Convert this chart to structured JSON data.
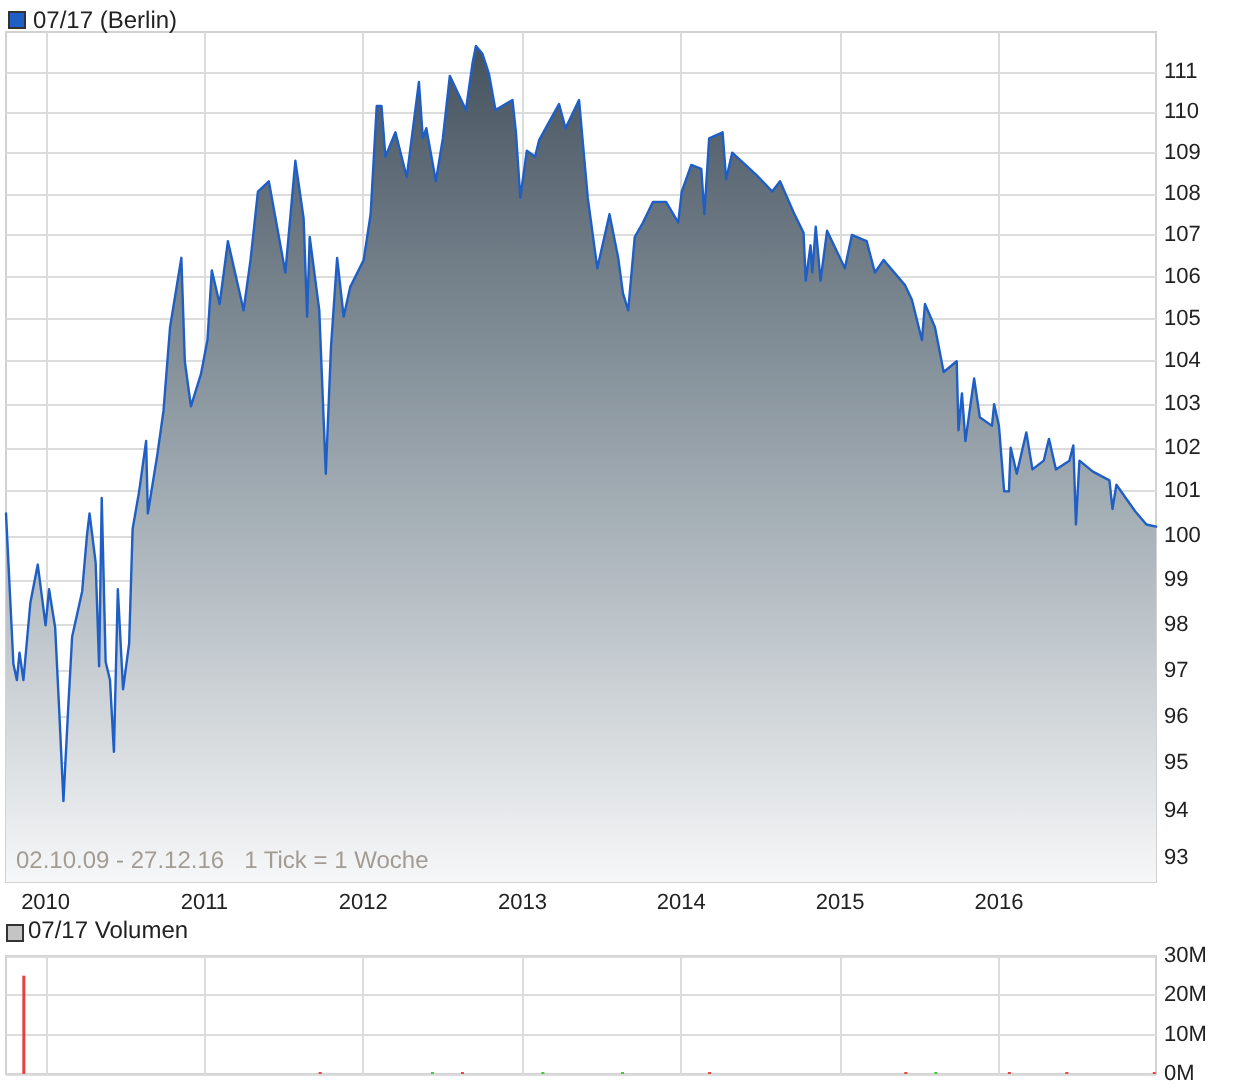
{
  "chart_data": [
    {
      "type": "area",
      "legend": "top left",
      "log": true,
      "grid": true,
      "xlim": [
        "2009-10-02",
        "2016-12-27"
      ],
      "xticks": [
        "2010",
        "2011",
        "2012",
        "2013",
        "2014",
        "2015",
        "2016"
      ],
      "ylim": [
        92.5,
        112
      ],
      "yticks": [
        93,
        94,
        95,
        96,
        97,
        98,
        99,
        100,
        101,
        102,
        103,
        104,
        105,
        106,
        107,
        108,
        109,
        110,
        111
      ],
      "annotations": [
        "02.10.09 - 27.12.16   1 Tick = 1 Woche"
      ],
      "series": [
        {
          "name": "07/17 (Berlin)",
          "color": "#1f5fc5",
          "x": [
            "2009-10-02",
            "2009-10-19",
            "2009-10-27",
            "2009-11-02",
            "2009-11-11",
            "2009-11-27",
            "2009-12-14",
            "2010-01-01",
            "2010-01-09",
            "2010-01-23",
            "2010-02-01",
            "2010-02-11",
            "2010-02-22",
            "2010-03-03",
            "2010-03-26",
            "2010-04-06",
            "2010-04-12",
            "2010-04-26",
            "2010-05-04",
            "2010-05-10",
            "2010-05-19",
            "2010-05-29",
            "2010-06-07",
            "2010-06-16",
            "2010-06-28",
            "2010-07-12",
            "2010-07-20",
            "2010-08-04",
            "2010-08-20",
            "2010-08-24",
            "2010-09-15",
            "2010-09-29",
            "2010-10-14",
            "2010-11-09",
            "2010-11-17",
            "2010-12-01",
            "2010-12-24",
            "2011-01-08",
            "2011-01-18",
            "2011-02-05",
            "2011-02-24",
            "2011-04-01",
            "2011-04-17",
            "2011-05-04",
            "2011-05-29",
            "2011-07-06",
            "2011-07-29",
            "2011-08-17",
            "2011-08-25",
            "2011-08-31",
            "2011-09-22",
            "2011-10-07",
            "2011-10-19",
            "2011-11-02",
            "2011-11-17",
            "2011-12-02",
            "2012-01-02",
            "2012-01-18",
            "2012-02-01",
            "2012-02-12",
            "2012-02-21",
            "2012-03-15",
            "2012-04-10",
            "2012-05-08",
            "2012-05-17",
            "2012-05-25",
            "2012-06-16",
            "2012-07-02",
            "2012-07-18",
            "2012-08-24",
            "2012-09-08",
            "2012-09-16",
            "2012-10-01",
            "2012-10-16",
            "2012-10-31",
            "2012-12-09",
            "2012-12-17",
            "2012-12-27",
            "2013-01-11",
            "2013-01-30",
            "2013-02-08",
            "2013-03-03",
            "2013-03-26",
            "2013-04-10",
            "2013-05-11",
            "2013-05-31",
            "2013-06-22",
            "2013-07-20",
            "2013-08-09",
            "2013-08-20",
            "2013-09-01",
            "2013-09-16",
            "2013-10-05",
            "2013-10-28",
            "2013-11-27",
            "2013-12-25",
            "2014-01-02",
            "2014-01-24",
            "2014-02-16",
            "2014-02-23",
            "2014-03-06",
            "2014-04-06",
            "2014-04-14",
            "2014-04-28",
            "2014-06-23",
            "2014-07-29",
            "2014-08-16",
            "2014-09-16",
            "2014-10-09",
            "2014-10-14",
            "2014-10-25",
            "2014-10-29",
            "2014-11-06",
            "2014-11-17",
            "2014-12-02",
            "2015-01-12",
            "2015-01-28",
            "2015-03-03",
            "2015-03-22",
            "2015-04-11",
            "2015-05-30",
            "2015-06-15",
            "2015-07-08",
            "2015-07-15",
            "2015-08-07",
            "2015-08-27",
            "2015-09-26",
            "2015-09-30",
            "2015-10-08",
            "2015-10-16",
            "2015-11-05",
            "2015-11-18",
            "2015-12-16",
            "2015-12-21",
            "2016-01-01",
            "2016-01-13",
            "2016-01-24",
            "2016-01-28",
            "2016-02-11",
            "2016-03-04",
            "2016-03-18",
            "2016-04-13",
            "2016-04-25",
            "2016-05-11",
            "2016-06-11",
            "2016-06-20",
            "2016-06-26",
            "2016-07-04",
            "2016-08-04",
            "2016-09-11",
            "2016-09-18",
            "2016-09-27",
            "2016-11-09",
            "2016-12-05",
            "2016-12-27"
          ],
          "values": [
            100.5,
            97.15,
            96.8,
            97.4,
            96.8,
            98.5,
            99.35,
            98.0,
            98.8,
            97.95,
            96.2,
            94.2,
            96.2,
            97.75,
            98.75,
            100,
            100.5,
            99.4,
            97.1,
            100.85,
            97.2,
            96.8,
            95.25,
            98.8,
            96.6,
            97.6,
            100.15,
            101,
            102.15,
            100.5,
            101.85,
            102.85,
            104.8,
            106.45,
            104,
            102.95,
            103.7,
            104.5,
            106.15,
            105.35,
            106.85,
            105.2,
            106.4,
            108.05,
            108.3,
            106.1,
            108.8,
            107.4,
            105.05,
            106.95,
            105.2,
            101.4,
            104.35,
            106.45,
            105.05,
            105.75,
            106.4,
            107.5,
            110.15,
            110.15,
            108.9,
            109.5,
            108.4,
            110.75,
            109.35,
            109.6,
            108.3,
            109.35,
            110.9,
            110.05,
            111.2,
            111.65,
            111.45,
            110.95,
            110.05,
            110.3,
            109.5,
            107.9,
            109.05,
            108.9,
            109.3,
            109.75,
            110.2,
            109.6,
            110.3,
            107.9,
            106.2,
            107.5,
            106.45,
            105.6,
            105.2,
            106.95,
            107.3,
            107.8,
            107.8,
            107.3,
            108.05,
            108.7,
            108.6,
            107.5,
            109.35,
            109.5,
            108.35,
            109.0,
            108.45,
            108.05,
            108.3,
            107.55,
            107.05,
            105.9,
            106.75,
            106.1,
            107.2,
            105.9,
            107.1,
            106.2,
            107.0,
            106.85,
            106.1,
            106.4,
            105.8,
            105.45,
            104.5,
            105.35,
            104.8,
            103.75,
            104.0,
            102.4,
            103.25,
            102.15,
            103.6,
            102.7,
            102.5,
            103.0,
            102.5,
            101.0,
            101.0,
            102.0,
            101.4,
            102.35,
            101.5,
            101.7,
            102.2,
            101.5,
            101.7,
            102.05,
            100.25,
            101.7,
            101.45,
            101.25,
            100.6,
            101.15,
            100.55,
            100.25,
            100.2
          ]
        }
      ]
    },
    {
      "type": "bar",
      "title": "07/17 Volumen",
      "grid": true,
      "tick_labels": "y",
      "xlim": [
        "2009-10-02",
        "2016-12-27"
      ],
      "xticks": [
        "2010",
        "2011",
        "2012",
        "2013",
        "2014",
        "2015",
        "2016"
      ],
      "ylim": [
        0,
        30
      ],
      "yticks": [
        {
          "value": 0,
          "label": "0M"
        },
        {
          "value": 10,
          "label": "10M"
        },
        {
          "value": 20,
          "label": "20M"
        },
        {
          "value": 30,
          "label": "30M"
        }
      ],
      "series": [
        {
          "x": [
            "2009-11-12",
            "2011-09-24",
            "2012-06-08",
            "2012-08-16",
            "2013-02-17",
            "2013-08-19",
            "2014-03-07",
            "2015-06-01",
            "2015-08-09",
            "2016-01-25",
            "2016-06-05",
            "2016-12-23"
          ],
          "values": [
            25,
            0.5,
            0.5,
            0.5,
            0.5,
            0.5,
            0.5,
            0.5,
            0.5,
            0.5,
            0.5,
            0.5
          ],
          "colors": [
            "#e8413c",
            "#e8413c",
            "#3cc83c",
            "#e8413c",
            "#3cc83c",
            "#3cc83c",
            "#e8413c",
            "#e8413c",
            "#3cc83c",
            "#e8413c",
            "#e8413c",
            "#e8413c"
          ]
        }
      ]
    }
  ]
}
